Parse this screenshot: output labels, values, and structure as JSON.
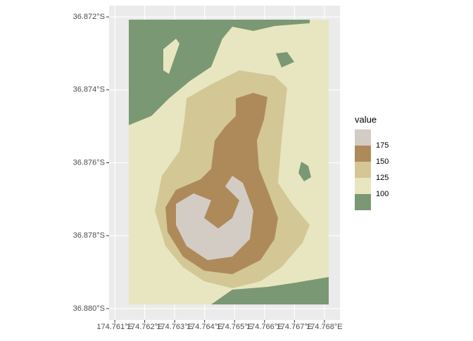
{
  "chart_data": {
    "type": "raster",
    "xlim": [
      174.76081,
      174.76852
    ],
    "ylim": [
      -36.88031,
      -36.87169
    ],
    "xticks": [
      {
        "value": 174.761,
        "label": "174.761°E"
      },
      {
        "value": 174.762,
        "label": "174.762°E"
      },
      {
        "value": 174.763,
        "label": "174.763°E"
      },
      {
        "value": 174.764,
        "label": "174.764°E"
      },
      {
        "value": 174.765,
        "label": "174.765°E"
      },
      {
        "value": 174.766,
        "label": "174.766°E"
      },
      {
        "value": 174.767,
        "label": "174.767°E"
      },
      {
        "value": 174.768,
        "label": "174.768°E"
      }
    ],
    "yticks": [
      {
        "value": -36.872,
        "label": "36.872°S"
      },
      {
        "value": -36.874,
        "label": "36.874°S"
      },
      {
        "value": -36.876,
        "label": "36.876°S"
      },
      {
        "value": -36.878,
        "label": "36.878°S"
      },
      {
        "value": -36.88,
        "label": "36.880°S"
      }
    ],
    "grid": true,
    "legend": {
      "title": "value",
      "breaks": [
        100,
        125,
        150,
        175
      ],
      "colors": [
        "#7a9873",
        "#e8e6c0",
        "#d3c796",
        "#ae8a5a",
        "#d3ccc5"
      ]
    }
  }
}
